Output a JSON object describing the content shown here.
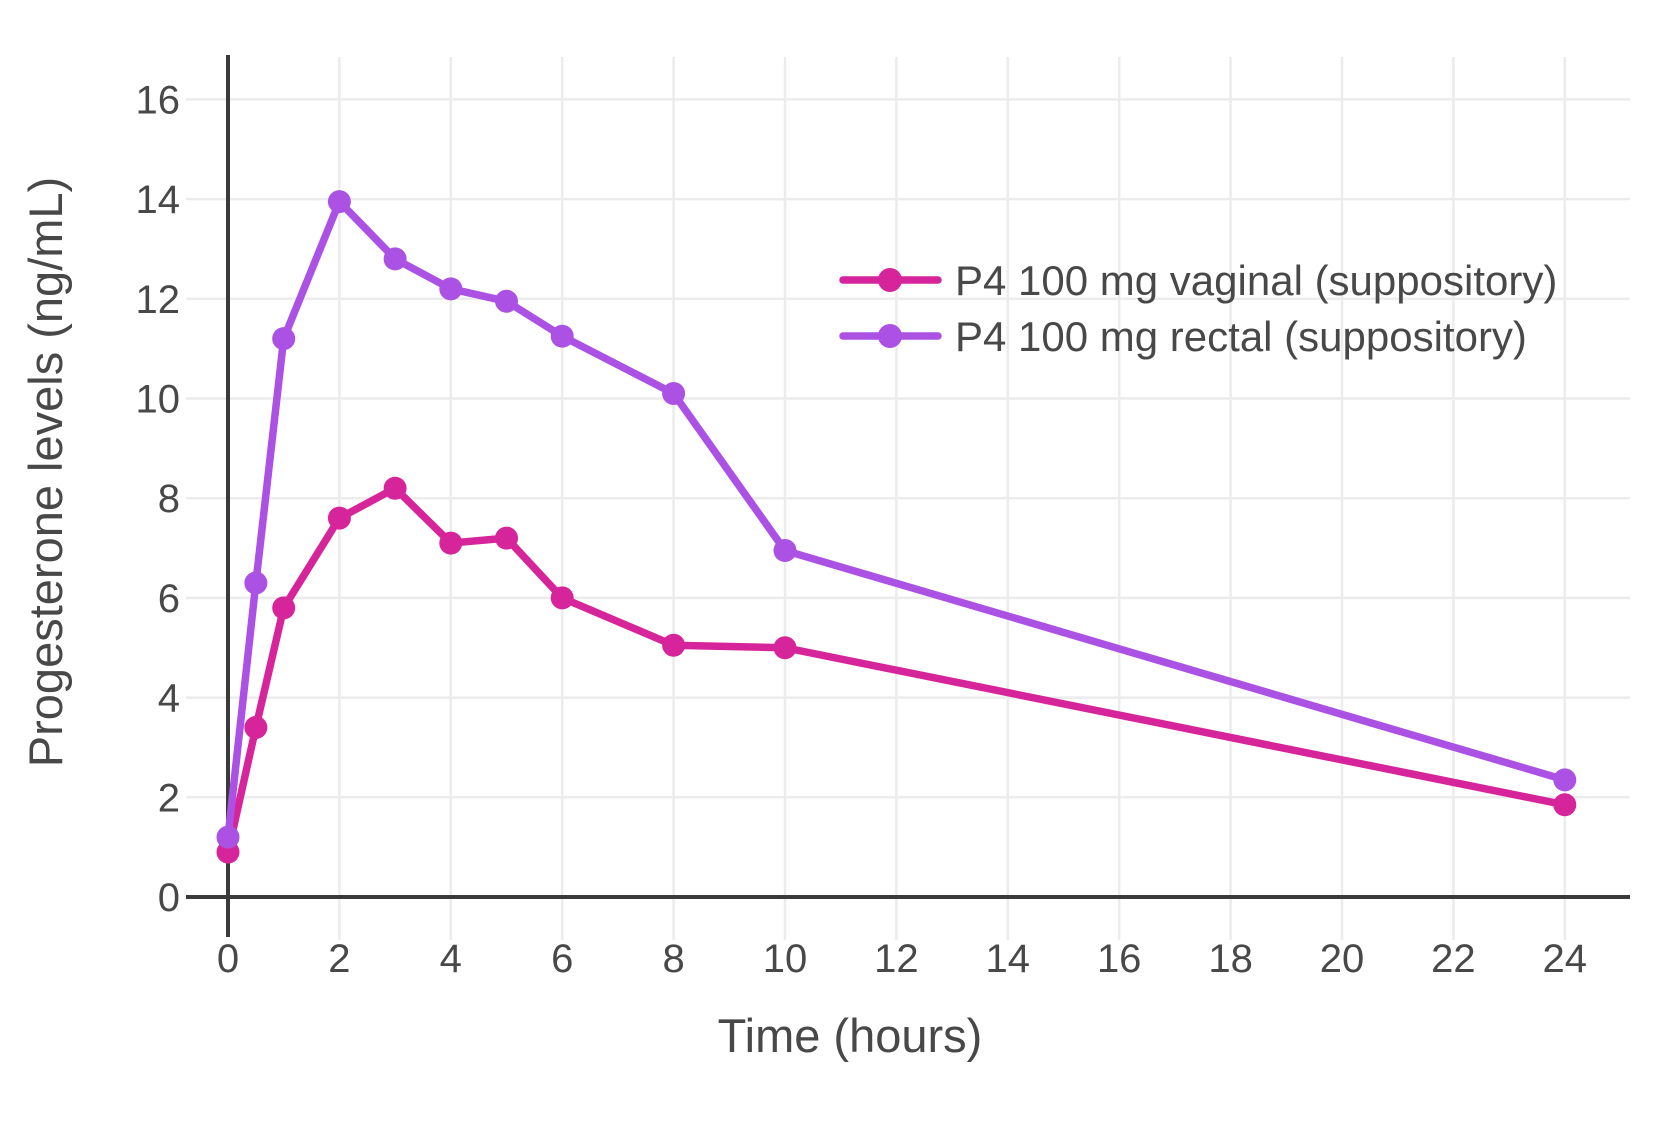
{
  "chart_data": {
    "type": "line",
    "title": "",
    "xlabel": "Time (hours)",
    "ylabel": "Progesterone levels (ng/mL)",
    "x": [
      0,
      0.5,
      1,
      2,
      3,
      4,
      5,
      6,
      8,
      10,
      24
    ],
    "series": [
      {
        "name": "P4 100 mg vaginal (suppository)",
        "color": "#d6259a",
        "values": [
          0.9,
          3.4,
          5.8,
          7.6,
          8.2,
          7.1,
          7.2,
          6.0,
          5.05,
          5.0,
          1.85
        ]
      },
      {
        "name": "P4 100 mg rectal (suppository)",
        "color": "#ab52e4",
        "values": [
          1.2,
          6.3,
          11.2,
          13.95,
          12.8,
          12.2,
          11.95,
          11.25,
          10.1,
          6.95,
          2.35
        ]
      }
    ],
    "xlim": [
      0,
      25.2
    ],
    "ylim": [
      0,
      17
    ],
    "xticks": [
      0,
      2,
      4,
      6,
      8,
      10,
      12,
      14,
      16,
      18,
      20,
      22,
      24
    ],
    "yticks": [
      0,
      2,
      4,
      6,
      8,
      10,
      12,
      14,
      16
    ],
    "grid": true,
    "legend_position": "inside-upper-right",
    "marker": "circle"
  },
  "style": {
    "background_color": "#ffffff",
    "axis_color": "#3a3a3a",
    "grid_color": "#ececec",
    "text_color": "#484848"
  }
}
